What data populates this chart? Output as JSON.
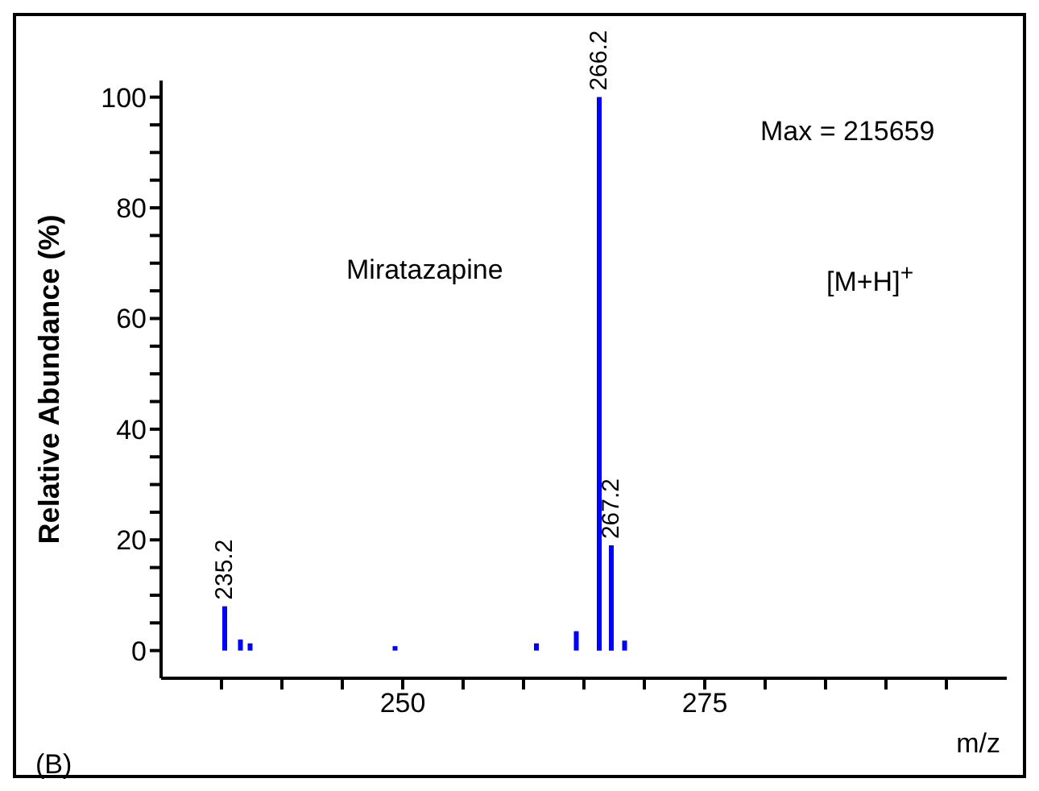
{
  "chart_data": {
    "type": "bar",
    "xlabel": "m/z",
    "ylabel": "Relative Abundance (%)",
    "x": [
      235.2,
      236.5,
      237.3,
      249.3,
      261,
      264.3,
      266.2,
      267.2,
      268.3
    ],
    "values": [
      8,
      2,
      1.3,
      0.8,
      1.3,
      3.5,
      100,
      19,
      1.8
    ],
    "color": "#0000ff",
    "xlim": [
      230,
      300
    ],
    "xticks": [
      {
        "value": 235,
        "label": null
      },
      {
        "value": 240,
        "label": null
      },
      {
        "value": 245,
        "label": null
      },
      250,
      {
        "value": 255,
        "label": null
      },
      {
        "value": 260,
        "label": null
      },
      {
        "value": 265,
        "label": null
      },
      {
        "value": 270,
        "label": null
      },
      275,
      {
        "value": 280,
        "label": null
      },
      {
        "value": 285,
        "label": null
      },
      {
        "value": 290,
        "label": null
      },
      {
        "value": 295,
        "label": null
      }
    ],
    "ylim": [
      -5,
      103
    ],
    "yticks": [
      0,
      {
        "value": 5,
        "label": null
      },
      {
        "value": 10,
        "label": null
      },
      {
        "value": 15,
        "label": null
      },
      20,
      {
        "value": 25,
        "label": null
      },
      {
        "value": 30,
        "label": null
      },
      {
        "value": 35,
        "label": null
      },
      40,
      {
        "value": 45,
        "label": null
      },
      {
        "value": 50,
        "label": null
      },
      {
        "value": 55,
        "label": null
      },
      60,
      {
        "value": 65,
        "label": null
      },
      {
        "value": 70,
        "label": null
      },
      {
        "value": 75,
        "label": null
      },
      80,
      {
        "value": 85,
        "label": null
      },
      {
        "value": 90,
        "label": null
      },
      {
        "value": 95,
        "label": null
      },
      100
    ],
    "annotations": [
      "Max = 215659",
      "Miratazapine",
      "[M+H]$^{+}$",
      "(B)",
      {
        "text": "235.2",
        "x": 235.2,
        "y": 8
      },
      {
        "text": "266.2",
        "x": 266.2,
        "y": 100
      },
      {
        "text": "267.2",
        "x": 267.2,
        "y": 19
      }
    ]
  }
}
